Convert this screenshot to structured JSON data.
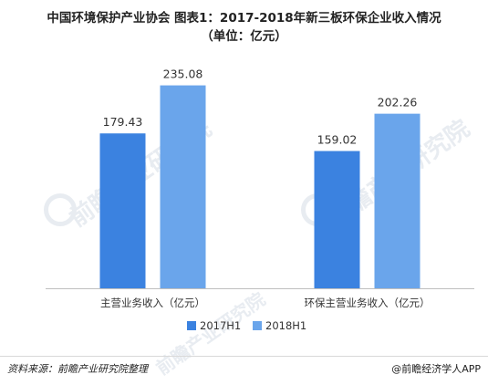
{
  "title_line1": "中国环境保护产业协会 图表1：2017-2018年新三板环保企业收入情况",
  "title_line2": "（单位：亿元）",
  "watermark": "前瞻产业研究院",
  "source": "资料来源：前瞻产业研究院整理",
  "credit": "@前瞻经济学人APP",
  "colors": {
    "series1": "#3b82e0",
    "series2": "#6aa5eb",
    "axis": "#bfbfbf"
  },
  "chart_data": {
    "type": "bar",
    "categories": [
      "主营业务收入（亿元）",
      "环保主营业务收入（亿元）"
    ],
    "series": [
      {
        "name": "2017H1",
        "values": [
          179.43,
          159.02
        ]
      },
      {
        "name": "2018H1",
        "values": [
          235.08,
          202.26
        ]
      }
    ],
    "ylim": [
      0,
      260
    ],
    "grid": false,
    "legend": "bottom-center"
  }
}
